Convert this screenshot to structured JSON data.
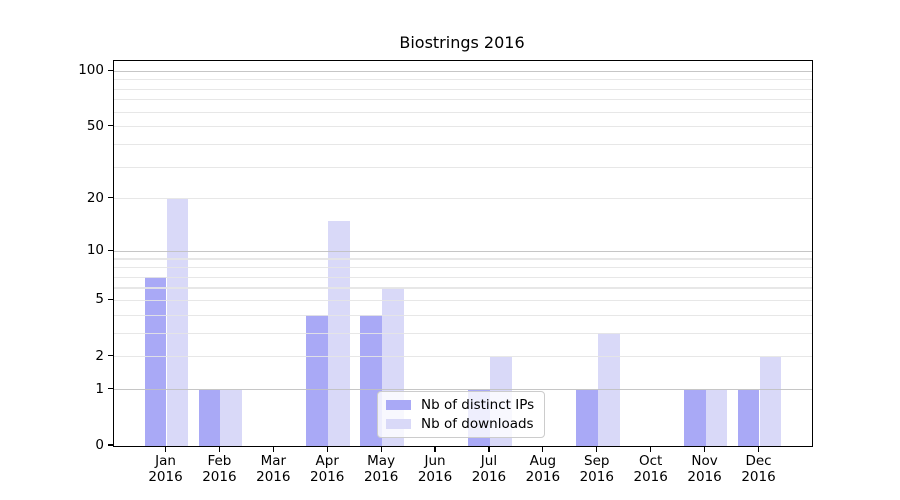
{
  "chart_data": {
    "type": "bar",
    "title": "Biostrings 2016",
    "xlabel": "",
    "ylabel": "",
    "yscale": "log1p",
    "ylim": [
      0,
      113.5
    ],
    "yticks": [
      0,
      1,
      2,
      5,
      10,
      20,
      50,
      100
    ],
    "grid_major": [
      1,
      10,
      100
    ],
    "grid_minor": [
      2,
      3,
      4,
      5,
      6,
      7,
      8,
      9,
      20,
      30,
      40,
      50,
      60,
      70,
      80,
      90
    ],
    "categories": [
      "Jan",
      "Feb",
      "Mar",
      "Apr",
      "May",
      "Jun",
      "Jul",
      "Aug",
      "Sep",
      "Oct",
      "Nov",
      "Dec"
    ],
    "x_tick_year": "2016",
    "series": [
      {
        "name": "Nb of distinct IPs",
        "color": "#a9a9f6",
        "values": [
          7,
          1,
          0,
          4,
          4,
          0,
          1,
          0,
          1,
          0,
          1,
          1
        ]
      },
      {
        "name": "Nb of downloads",
        "color": "#d9d9f8",
        "values": [
          20,
          1,
          0,
          15,
          6,
          0,
          2,
          0,
          3,
          0,
          1,
          2
        ]
      }
    ],
    "legend_position": "lower-center"
  }
}
